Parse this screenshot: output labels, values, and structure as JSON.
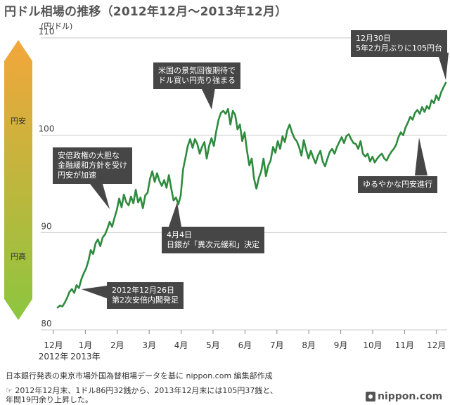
{
  "title": "円ドル相場の推移（2012年12月〜2013年12月）",
  "footer": {
    "source": "日本銀行発表の東京市場外国為替相場データを基に nippon.com 編集部作成",
    "note_line1": "☞ 2012年12月末、1ドル86円32銭から、2013年12月末には105円37銭と、",
    "note_line2": "年間19円余り上昇した。",
    "brand": "nippon.com"
  },
  "colors": {
    "line": "#2e8b3e",
    "grid": "#c8c8c8",
    "annotation_bg": "#464646",
    "yen_weak": "#f3a63b",
    "yen_strong": "#8cc63f"
  },
  "chart_data": {
    "type": "line",
    "title": "円ドル相場の推移（2012年12月〜2013年12月）",
    "unit_label": "(円/ドル)",
    "ylim": [
      80,
      110
    ],
    "yticks": [
      80,
      90,
      100,
      110
    ],
    "grid": true,
    "x_tick_labels": [
      "12月",
      "1月",
      "2月",
      "3月",
      "4月",
      "5月",
      "6月",
      "7月",
      "8月",
      "9月",
      "10月",
      "11月",
      "12月"
    ],
    "x_year_labels": [
      "2012年",
      "2013年"
    ],
    "side_labels": {
      "top": "円安",
      "bottom": "円高"
    },
    "series": [
      {
        "values": [
          82.3,
          82.5,
          82.4,
          82.8,
          83.3,
          83.9,
          84.2,
          83.8,
          84.6,
          84.3,
          85.2,
          85.8,
          86.3,
          87.1,
          88.2,
          87.8,
          88.9,
          89.3,
          88.6,
          89.5,
          89.8,
          90.4,
          91.1,
          90.6,
          91.5,
          92.3,
          93.5,
          92.6,
          93.9,
          93.1,
          92.8,
          93.7,
          93.0,
          94.4,
          93.1,
          93.6,
          92.5,
          93.8,
          94.1,
          95.5,
          96.3,
          95.2,
          96.1,
          95.3,
          94.8,
          95.4,
          94.6,
          95.9,
          94.5,
          93.3,
          93.6,
          92.9,
          93.8,
          96.5,
          97.7,
          98.9,
          99.6,
          98.7,
          99.6,
          99.1,
          98.1,
          98.8,
          99.3,
          97.6,
          98.9,
          99.7,
          98.9,
          100.4,
          101.6,
          102.3,
          102.5,
          102.2,
          102.7,
          101.1,
          102.5,
          102.1,
          100.6,
          101.1,
          99.4,
          100.3,
          98.4,
          96.9,
          97.6,
          95.5,
          94.5,
          95.6,
          96.3,
          97.6,
          95.8,
          96.9,
          97.4,
          98.8,
          98.2,
          99.4,
          98.6,
          99.9,
          99.3,
          100.5,
          101.1,
          100.3,
          99.7,
          99.4,
          98.8,
          97.9,
          99.5,
          98.5,
          97.6,
          98.4,
          97.7,
          97.1,
          97.9,
          98.4,
          97.3,
          96.8,
          97.6,
          98.3,
          98.6,
          98.1,
          98.8,
          99.3,
          99.8,
          99.2,
          99.9,
          100.1,
          99.6,
          99.2,
          99.1,
          98.6,
          99.4,
          98.1,
          97.8,
          98.1,
          97.3,
          97.8,
          97.2,
          97.6,
          97.9,
          98.1,
          97.6,
          97.4,
          97.9,
          98.3,
          98.6,
          99.0,
          99.8,
          100.3,
          100.0,
          100.8,
          101.3,
          101.9,
          101.6,
          102.3,
          102.6,
          102.2,
          102.9,
          102.4,
          103.0,
          102.7,
          103.6,
          103.3,
          104.1,
          103.6,
          104.4,
          104.9,
          105.4
        ]
      }
    ],
    "annotations": [
      {
        "text": "12月30日\n5年2カ月ぶりに105円台"
      },
      {
        "text": "米国の景気回復期待で\nドル買い円売り強まる"
      },
      {
        "text": "安倍政権の大胆な\n金融緩和方針を受け\n円安が加速"
      },
      {
        "text": "4月4日\n日銀が「異次元緩和」決定"
      },
      {
        "text": "ゆるやかな円安進行"
      },
      {
        "text": "2012年12月26日\n第2次安倍内閣発足"
      }
    ]
  }
}
